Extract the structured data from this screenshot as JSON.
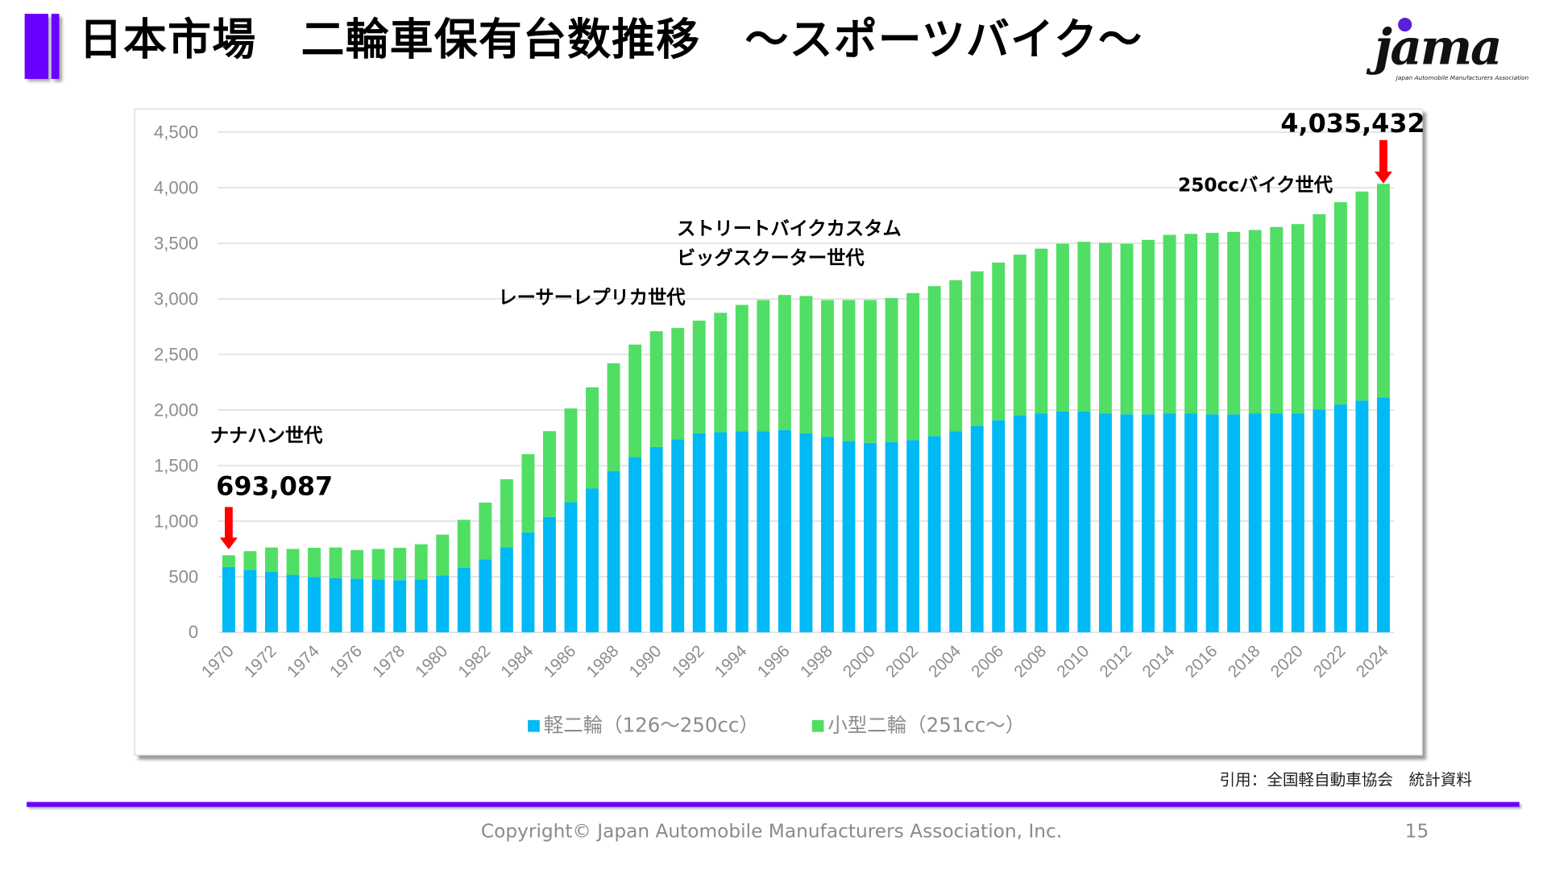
{
  "header": {
    "title": "日本市場　二輪車保有台数推移　～スポーツバイク～",
    "accent_color": "#6A00FF",
    "logo_text": "jama",
    "logo_subtext": "Japan Automobile Manufacturers Association"
  },
  "chart_data": {
    "type": "bar",
    "stacked": true,
    "title": "",
    "xlabel": "",
    "ylabel": "",
    "ylim": [
      0,
      4500
    ],
    "yticks": [
      "0",
      "500",
      "1,000",
      "1,500",
      "2,000",
      "2,500",
      "3,000",
      "3,500",
      "4,000",
      "4,500"
    ],
    "ytick_values": [
      0,
      500,
      1000,
      1500,
      2000,
      2500,
      3000,
      3500,
      4000,
      4500
    ],
    "grid": true,
    "legend_position": "bottom",
    "categories": [
      1970,
      1971,
      1972,
      1973,
      1974,
      1975,
      1976,
      1977,
      1978,
      1979,
      1980,
      1981,
      1982,
      1983,
      1984,
      1985,
      1986,
      1987,
      1988,
      1989,
      1990,
      1991,
      1992,
      1993,
      1994,
      1995,
      1996,
      1997,
      1998,
      1999,
      2000,
      2001,
      2002,
      2003,
      2004,
      2005,
      2006,
      2007,
      2008,
      2009,
      2010,
      2011,
      2012,
      2013,
      2014,
      2015,
      2016,
      2017,
      2018,
      2019,
      2020,
      2021,
      2022,
      2023,
      2024
    ],
    "xtick_labels": [
      "1970",
      "1972",
      "1974",
      "1976",
      "1978",
      "1980",
      "1982",
      "1984",
      "1986",
      "1988",
      "1990",
      "1992",
      "1994",
      "1996",
      "1998",
      "2000",
      "2002",
      "2004",
      "2006",
      "2008",
      "2010",
      "2012",
      "2014",
      "2016",
      "2018",
      "2020",
      "2022",
      "2024"
    ],
    "series": [
      {
        "name": "軽二輪（126～250cc）",
        "color": "#00B9F5",
        "values": [
          588,
          562,
          543,
          517,
          498,
          488,
          482,
          475,
          469,
          475,
          511,
          579,
          656,
          766,
          899,
          1038,
          1170,
          1293,
          1451,
          1577,
          1668,
          1736,
          1792,
          1800,
          1810,
          1810,
          1820,
          1790,
          1757,
          1720,
          1704,
          1712,
          1730,
          1765,
          1810,
          1855,
          1908,
          1952,
          1970,
          1988,
          1988,
          1970,
          1961,
          1961,
          1970,
          1970,
          1961,
          1961,
          1970,
          1970,
          1970,
          2005,
          2050,
          2085,
          2112
        ]
      },
      {
        "name": "小型二輪（251cc～）",
        "color": "#50DF64",
        "values": [
          105,
          168,
          220,
          233,
          262,
          275,
          258,
          275,
          291,
          317,
          368,
          433,
          511,
          611,
          704,
          772,
          844,
          911,
          970,
          1012,
          1041,
          1002,
          1012,
          1075,
          1136,
          1180,
          1215,
          1236,
          1233,
          1270,
          1286,
          1296,
          1322,
          1350,
          1358,
          1393,
          1419,
          1446,
          1482,
          1508,
          1526,
          1535,
          1535,
          1570,
          1606,
          1615,
          1633,
          1642,
          1650,
          1677,
          1703,
          1757,
          1820,
          1881,
          1923
        ]
      }
    ],
    "annotations": [
      {
        "text": "ナナハン世代"
      },
      {
        "text": "693,087"
      },
      {
        "text": "レーサーレプリカ世代"
      },
      {
        "text": "ストリートバイクカスタム"
      },
      {
        "text": "ビッグスクーター世代"
      },
      {
        "text": "250ccバイク世代"
      },
      {
        "text": "4,035,432"
      }
    ],
    "arrow_color": "#FF0000"
  },
  "footer": {
    "source": "引用：全国軽自動車協会　統計資料",
    "copyright": "Copyright© Japan Automobile Manufacturers Association, Inc.",
    "page_number": "15"
  }
}
